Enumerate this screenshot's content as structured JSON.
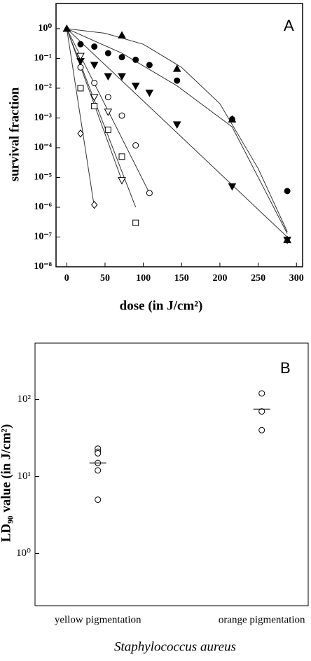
{
  "chart_data": [
    {
      "type": "scatter",
      "panel": "A",
      "x_label": "dose (in J/cm²)",
      "y_label": "survival fraction",
      "xlim": [
        -14,
        308
      ],
      "xticks": [
        0,
        50,
        100,
        150,
        200,
        250,
        300
      ],
      "ylim": [
        1e-08,
        7
      ],
      "log_y": true,
      "yticks": [
        {
          "value": 1,
          "label": "10⁰"
        },
        {
          "value": 0.1,
          "label": "10⁻¹"
        },
        {
          "value": 0.01,
          "label": "10⁻²"
        },
        {
          "value": 0.001,
          "label": "10⁻³"
        },
        {
          "value": 0.0001,
          "label": "10⁻⁴"
        },
        {
          "value": 1e-05,
          "label": "10⁻⁵"
        },
        {
          "value": 1e-06,
          "label": "10⁻⁶"
        },
        {
          "value": 1e-07,
          "label": "10⁻⁷"
        },
        {
          "value": 1e-08,
          "label": "10⁻⁸"
        }
      ],
      "series": [
        {
          "marker": "triangle-up",
          "filled": true,
          "color": "#000000",
          "x": [
            0,
            72,
            144,
            216,
            288
          ],
          "values": [
            1,
            0.6,
            0.045,
            0.0009,
            8e-08
          ]
        },
        {
          "marker": "circle",
          "filled": true,
          "color": "#000000",
          "x": [
            18,
            36,
            54,
            72,
            90,
            108,
            144,
            216,
            288
          ],
          "values": [
            0.3,
            0.25,
            0.15,
            0.11,
            0.09,
            0.06,
            0.018,
            0.0009,
            3.5e-06
          ]
        },
        {
          "marker": "triangle-down",
          "filled": true,
          "color": "#000000",
          "x": [
            18,
            36,
            54,
            72,
            90,
            108,
            144,
            216,
            288
          ],
          "values": [
            0.08,
            0.06,
            0.025,
            0.025,
            0.012,
            0.007,
            0.0006,
            5e-06,
            8e-08
          ]
        },
        {
          "marker": "circle",
          "filled": false,
          "color": "#000000",
          "x": [
            18,
            36,
            54,
            72,
            90,
            108
          ],
          "values": [
            0.05,
            0.015,
            0.005,
            0.0012,
            0.00012,
            3e-06
          ]
        },
        {
          "marker": "square",
          "filled": false,
          "color": "#000000",
          "x": [
            18,
            36,
            54,
            72,
            90
          ],
          "values": [
            0.01,
            0.0025,
            0.0004,
            5e-05,
            3e-07
          ]
        },
        {
          "marker": "triangle-down",
          "filled": false,
          "color": "#000000",
          "x": [
            18,
            36,
            54,
            72
          ],
          "values": [
            0.12,
            0.005,
            0.0016,
            8e-06
          ]
        },
        {
          "marker": "diamond",
          "filled": false,
          "color": "#000000",
          "x": [
            18,
            36
          ],
          "values": [
            0.0003,
            1.2e-06
          ]
        }
      ],
      "curves": [
        {
          "x": [
            0,
            50,
            100,
            150,
            200,
            250,
            288
          ],
          "values": [
            1,
            0.7,
            0.3,
            0.05,
            0.003,
            2e-05,
            1.5e-07
          ]
        },
        {
          "x": [
            0,
            72,
            144,
            216,
            288
          ],
          "values": [
            1,
            0.15,
            0.012,
            0.0005,
            1.3e-07
          ]
        },
        {
          "x": [
            0,
            288
          ],
          "values": [
            1,
            1e-07
          ]
        },
        {
          "x": [
            0,
            108
          ],
          "values": [
            1,
            3e-06
          ]
        },
        {
          "x": [
            0,
            90
          ],
          "values": [
            1,
            1e-06
          ]
        },
        {
          "x": [
            0,
            72
          ],
          "values": [
            1,
            8e-06
          ]
        },
        {
          "x": [
            0,
            36
          ],
          "values": [
            1,
            1e-06
          ]
        }
      ]
    },
    {
      "type": "strip",
      "panel": "B",
      "x_label": "Staphylococcus aureus",
      "y_label": "LD₉₀ value (in J/cm²)",
      "categories": [
        "yellow pigmentation",
        "orange pigmentation"
      ],
      "ylim": [
        0.21,
        540
      ],
      "log_y": true,
      "yticks": [
        {
          "value": 1,
          "label": "10⁰"
        },
        {
          "value": 10,
          "label": "10¹"
        },
        {
          "value": 100,
          "label": "10²"
        }
      ],
      "values": [
        [
          23,
          21,
          20,
          15,
          12,
          5
        ],
        [
          120,
          70,
          40
        ]
      ],
      "means": [
        15,
        75
      ]
    }
  ]
}
